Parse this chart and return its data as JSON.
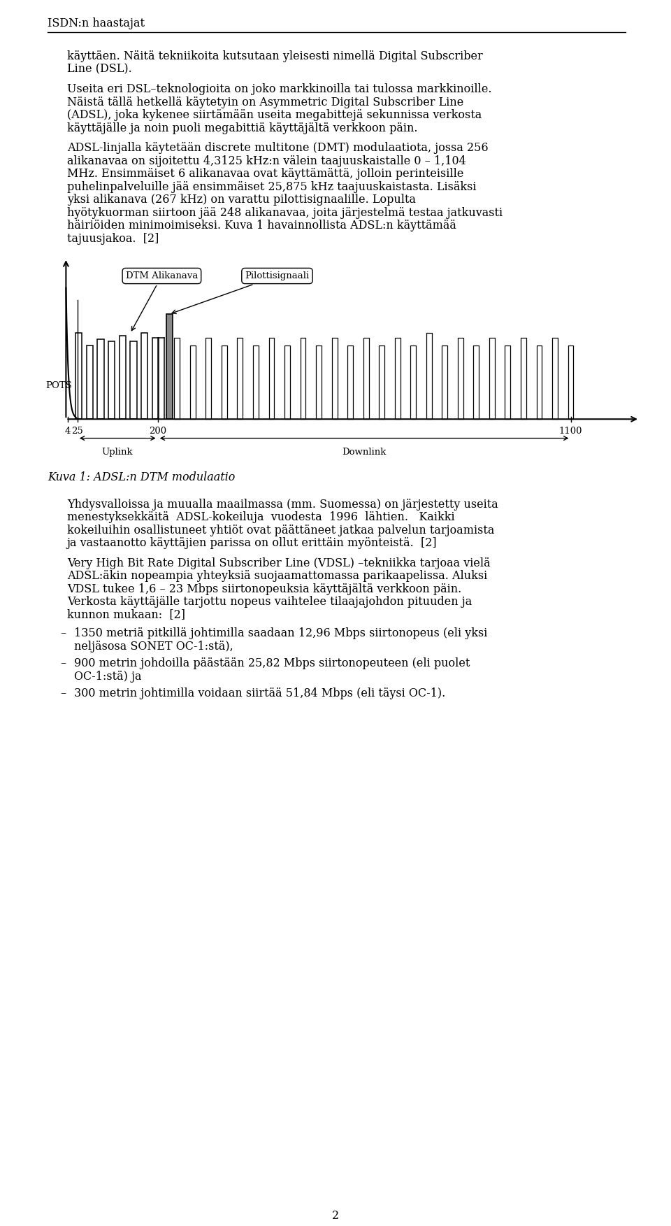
{
  "page_title": "ISDN:n haastajat",
  "para1_lines": [
    "käyttäen. Näitä tekniikoita kutsutaan yleisesti nimellä Digital Subscriber",
    "Line (DSL)."
  ],
  "para2_lines": [
    "Useita eri DSL–teknologioita on joko markkinoilla tai tulossa markkinoille.",
    "Näistä tällä hetkellä käytetyin on Asymmetric Digital Subscriber Line",
    "(ADSL), joka kykenee siirtämään useita megabittejä sekunnissa verkosta",
    "käyttäjälle ja noin puoli megabittiä käyttäjältä verkkoon päin."
  ],
  "para3_lines": [
    "ADSL-linjalla käytetään discrete multitone (DMT) modulaatiota, jossa 256",
    "alikanavaa on sijoitettu 4,3125 kHz:n välein taajuuskaistalle 0 – 1,104",
    "MHz. Ensimmäiset 6 alikanavaa ovat käyttämättä, jolloin perinteisille",
    "puhelinpalveluille jää ensimmäiset 25,875 kHz taajuuskaistasta. Lisäksi",
    "yksi alikanava (267 kHz) on varattu pilottisignaalille. Lopulta",
    "hyötykuorman siirtoon jää 248 alikanavaa, joita järjestelmä testaa jatkuvasti",
    "häiriöiden minimoimiseksi. Kuva 1 havainnollista ADSL:n käyttämää",
    "tajuusjakoa.  [2]"
  ],
  "figure_caption": "Kuva 1: ADSL:n DTM modulaatio",
  "para4_lines": [
    "Yhdysvalloissa ja muualla maailmassa (mm. Suomessa) on järjestetty useita",
    "menestyksekkäitä  ADSL-kokeiluja  vuodesta  1996  lähtien.   Kaikki",
    "kokeiluihin osallistuneet yhtiöt ovat päättäneet jatkaa palvelun tarjoamista",
    "ja vastaanotto käyttäjien parissa on ollut erittäin myönteistä.  [2]"
  ],
  "para5_lines": [
    "Very High Bit Rate Digital Subscriber Line (VDSL) –tekniikka tarjoaa vielä",
    "ADSL:äkin nopeampia yhteyksiä suojaamattomassa parikaapelissa. Aluksi",
    "VDSL tukee 1,6 – 23 Mbps siirtonopeuksia käyttäjältä verkkoon päin.",
    "Verkosta käyttäjälle tarjottu nopeus vaihtelee tilaajajohdon pituuden ja",
    "kunnon mukaan:  [2]"
  ],
  "bullet1_lines": [
    "1350 metriä pitkillä johtimilla saadaan 12,96 Mbps siirtonopeus (eli yksi",
    "neljäsosa SONET OC-1:stä),"
  ],
  "bullet2_lines": [
    "900 metrin johdoilla päästään 25,82 Mbps siirtonopeuteen (eli puolet",
    "OC-1:stä) ja"
  ],
  "bullet3_lines": [
    "300 metrin johtimilla voidaan siirtää 51,84 Mbps (eli täysi OC-1)."
  ],
  "page_number": "2",
  "background_color": "#ffffff",
  "text_color": "#000000"
}
